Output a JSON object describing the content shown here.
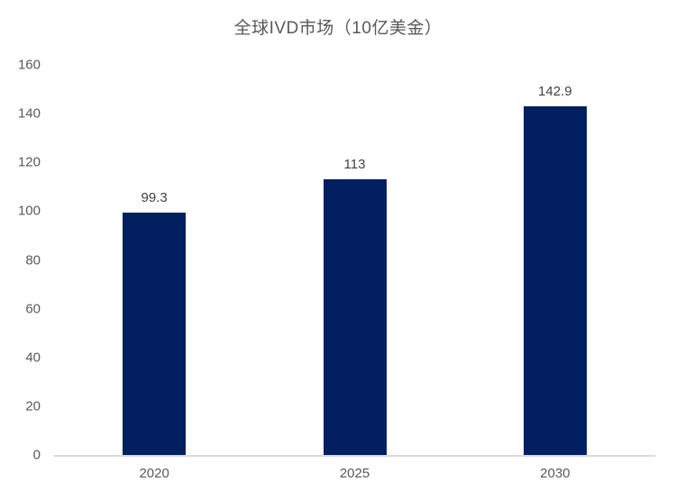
{
  "chart_data": {
    "type": "bar",
    "title": "全球IVD市场（10亿美金）",
    "categories": [
      "2020",
      "2025",
      "2030"
    ],
    "values": [
      99.3,
      113,
      142.9
    ],
    "value_labels": [
      "99.3",
      "113",
      "142.9"
    ],
    "ylim": [
      0,
      160
    ],
    "y_ticks": [
      0,
      20,
      40,
      60,
      80,
      100,
      120,
      140,
      160
    ],
    "grid": false,
    "legend_position": "none",
    "bar_color": "#02205f",
    "title_color": "#595959",
    "axis_label_color": "#595959",
    "value_label_color": "#404040",
    "axis_line_color": "#d9d9d9"
  }
}
